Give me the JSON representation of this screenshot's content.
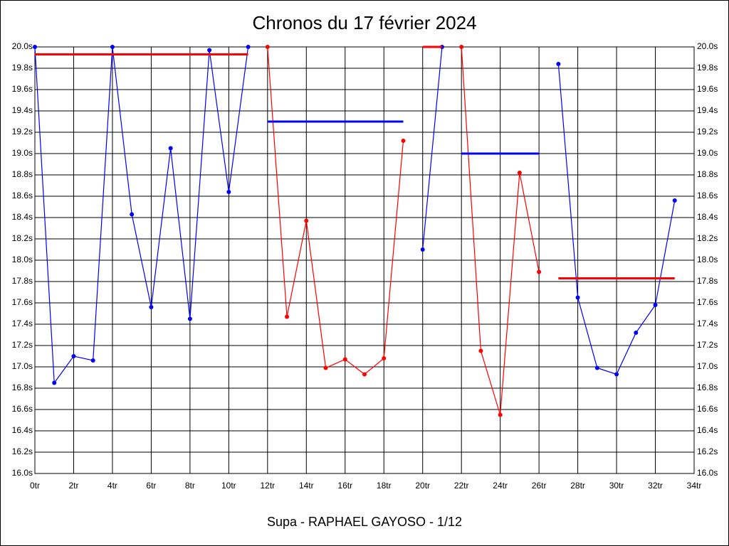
{
  "chart_data": {
    "type": "line",
    "title": "Chronos du 17 février 2024",
    "subtitle": "Supa - RAPHAEL GAYOSO - 1/12",
    "x": [
      0,
      1,
      2,
      3,
      4,
      5,
      6,
      7,
      8,
      9,
      10,
      11,
      12,
      13,
      14,
      15,
      16,
      17,
      18,
      19,
      20,
      21,
      22,
      23,
      24,
      25,
      26,
      27,
      28,
      29,
      30,
      31,
      32,
      33
    ],
    "series": [
      {
        "color": "#0000ff",
        "values": [
          20.0,
          16.85,
          17.1,
          17.06,
          20.0,
          18.43,
          17.56,
          19.05,
          17.45,
          19.97,
          18.64,
          20.0,
          null,
          null,
          null,
          null,
          null,
          null,
          null,
          null,
          18.1,
          20.0,
          null,
          null,
          null,
          null,
          null,
          19.84,
          17.65,
          16.99,
          16.93,
          17.32,
          17.58,
          18.56
        ]
      },
      {
        "color": "#ff0000",
        "values": [
          null,
          null,
          null,
          null,
          null,
          null,
          null,
          null,
          null,
          null,
          null,
          null,
          20.0,
          17.47,
          18.37,
          16.99,
          17.07,
          16.93,
          17.08,
          19.12,
          null,
          null,
          20.0,
          17.15,
          16.55,
          18.82,
          17.89,
          null,
          null,
          null,
          null,
          null,
          null,
          null
        ]
      }
    ],
    "mean_lines": [
      {
        "color": "#ff0000",
        "x": [
          0,
          11
        ],
        "value": 19.93
      },
      {
        "color": "#0000ff",
        "x": [
          12,
          19
        ],
        "value": 19.3
      },
      {
        "color": "#ff0000",
        "x": [
          20,
          21
        ],
        "value": 20.0
      },
      {
        "color": "#0000ff",
        "x": [
          22,
          26
        ],
        "value": 19.0
      },
      {
        "color": "#ff0000",
        "x": [
          27,
          33
        ],
        "value": 17.83
      }
    ],
    "xlim": [
      0,
      34
    ],
    "xticks": [
      {
        "value": 0,
        "label": "0tr"
      },
      {
        "value": 2,
        "label": "2tr"
      },
      {
        "value": 4,
        "label": "4tr"
      },
      {
        "value": 6,
        "label": "6tr"
      },
      {
        "value": 8,
        "label": "8tr"
      },
      {
        "value": 10,
        "label": "10tr"
      },
      {
        "value": 12,
        "label": "12tr"
      },
      {
        "value": 14,
        "label": "14tr"
      },
      {
        "value": 16,
        "label": "16tr"
      },
      {
        "value": 18,
        "label": "18tr"
      },
      {
        "value": 20,
        "label": "20tr"
      },
      {
        "value": 22,
        "label": "22tr"
      },
      {
        "value": 24,
        "label": "24tr"
      },
      {
        "value": 26,
        "label": "26tr"
      },
      {
        "value": 28,
        "label": "28tr"
      },
      {
        "value": 30,
        "label": "30tr"
      },
      {
        "value": 32,
        "label": "32tr"
      },
      {
        "value": 34,
        "label": "34tr"
      }
    ],
    "ylim": [
      16.0,
      20.0
    ],
    "yticks": [
      {
        "value": 16.0,
        "label": "16.0s"
      },
      {
        "value": 16.2,
        "label": "16.2s"
      },
      {
        "value": 16.4,
        "label": "16.4s"
      },
      {
        "value": 16.6,
        "label": "16.6s"
      },
      {
        "value": 16.8,
        "label": "16.8s"
      },
      {
        "value": 17.0,
        "label": "17.0s"
      },
      {
        "value": 17.2,
        "label": "17.2s"
      },
      {
        "value": 17.4,
        "label": "17.4s"
      },
      {
        "value": 17.6,
        "label": "17.6s"
      },
      {
        "value": 17.8,
        "label": "17.8s"
      },
      {
        "value": 18.0,
        "label": "18.0s"
      },
      {
        "value": 18.2,
        "label": "18.2s"
      },
      {
        "value": 18.4,
        "label": "18.4s"
      },
      {
        "value": 18.6,
        "label": "18.6s"
      },
      {
        "value": 18.8,
        "label": "18.8s"
      },
      {
        "value": 19.0,
        "label": "19.0s"
      },
      {
        "value": 19.2,
        "label": "19.2s"
      },
      {
        "value": 19.4,
        "label": "19.4s"
      },
      {
        "value": 19.6,
        "label": "19.6s"
      },
      {
        "value": 19.8,
        "label": "19.8s"
      },
      {
        "value": 20.0,
        "label": "20.0s"
      }
    ],
    "grid": true
  }
}
